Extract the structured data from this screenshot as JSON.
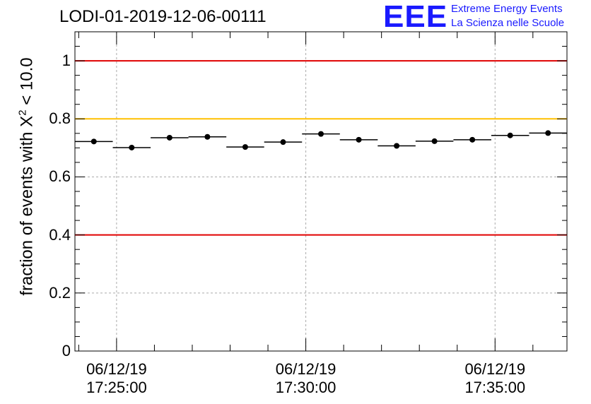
{
  "chart_data": {
    "type": "scatter",
    "title": "LODI-01-2019-12-06-00111",
    "ylabel_prefix": "fraction of events with X",
    "ylabel_sup": "2",
    "ylabel_suffix": " < 10.0",
    "xlabel": "",
    "ylim": [
      0,
      1.1
    ],
    "yticks": [
      "0",
      "0.2",
      "0.4",
      "0.6",
      "0.8",
      "1"
    ],
    "xticks": [
      {
        "minute": 5,
        "date": "06/12/19",
        "time": "17:25:00"
      },
      {
        "minute": 10,
        "date": "06/12/19",
        "time": "17:30:00"
      },
      {
        "minute": 15,
        "date": "06/12/19",
        "time": "17:35:00"
      }
    ],
    "x_range_minutes": [
      3.9,
      16.9
    ],
    "bin_width_minutes": 1,
    "series": [
      {
        "name": "fraction",
        "x_minutes": [
          4.4,
          5.4,
          6.4,
          7.4,
          8.4,
          9.4,
          10.4,
          11.4,
          12.4,
          13.4,
          14.4,
          15.4,
          16.4
        ],
        "values": [
          0.722,
          0.701,
          0.735,
          0.738,
          0.703,
          0.72,
          0.748,
          0.728,
          0.707,
          0.723,
          0.728,
          0.743,
          0.751
        ]
      }
    ],
    "reference_lines": [
      {
        "value": 1.0,
        "color": "#e00000"
      },
      {
        "value": 0.8,
        "color": "#ffc000"
      },
      {
        "value": 0.4,
        "color": "#e00000"
      }
    ]
  },
  "logo": {
    "mark": "EEE",
    "line1": "Extreme Energy Events",
    "line2": "La Scienza nelle Scuole"
  }
}
